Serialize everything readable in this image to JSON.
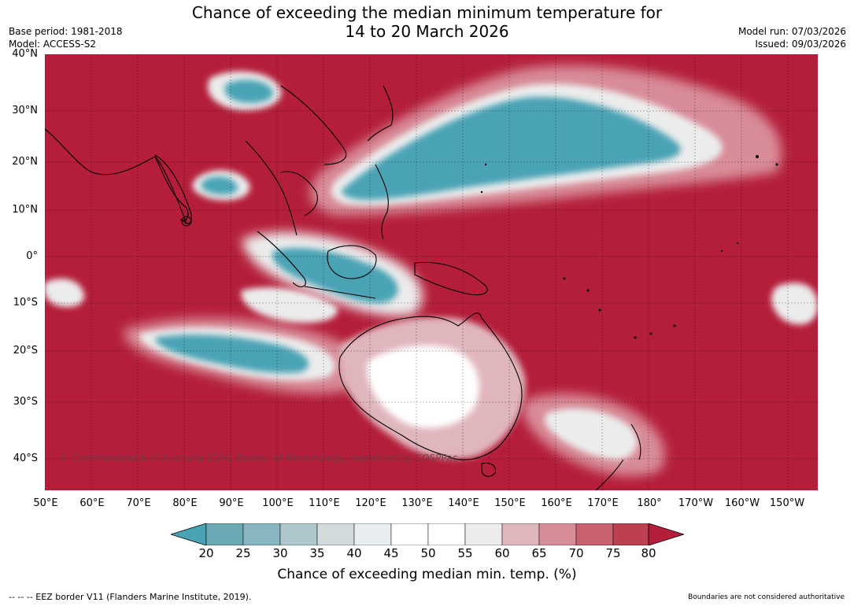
{
  "header": {
    "title_line1": "Chance of exceeding the median minimum temperature for",
    "title_line2": "14 to 20 March 2026",
    "base_period": "Base period: 1981-2018",
    "model": "Model: ACCESS-S2",
    "model_run": "Model run: 07/03/2026",
    "issued": "Issued: 09/03/2026"
  },
  "map": {
    "lat_labels": [
      "40°N",
      "30°N",
      "20°N",
      "10°N",
      "0°",
      "10°S",
      "20°S",
      "30°S",
      "40°S"
    ],
    "lon_labels": [
      "50°E",
      "60°E",
      "70°E",
      "80°E",
      "90°E",
      "100°E",
      "110°E",
      "120°E",
      "130°E",
      "140°E",
      "150°E",
      "160°E",
      "170°E",
      "180°",
      "170°W",
      "160°W",
      "150°W"
    ],
    "copyright": "© Commonwealth of Australia 2026, Bureau of Meteorology, supported by COSPPac",
    "background_color": "#b41e3a"
  },
  "legend": {
    "ticks": [
      "20",
      "25",
      "30",
      "35",
      "40",
      "45",
      "50",
      "55",
      "60",
      "65",
      "70",
      "75",
      "80"
    ],
    "colors": [
      "#4aa3b5",
      "#6aa9b3",
      "#88b6c0",
      "#adc7cc",
      "#d2dadc",
      "#e8eef0",
      "#ffffff",
      "#ffffff",
      "#ececec",
      "#e0b6bd",
      "#d88c98",
      "#c9616f",
      "#bd4050",
      "#b41e3a"
    ],
    "label": "Chance of exceeding median min. temp. (%)"
  },
  "footer": {
    "eez": "--  --  -- EEZ border V11 (Flanders Marine Institute, 2019).",
    "disclaimer": "Boundaries are not considered authoritative"
  }
}
